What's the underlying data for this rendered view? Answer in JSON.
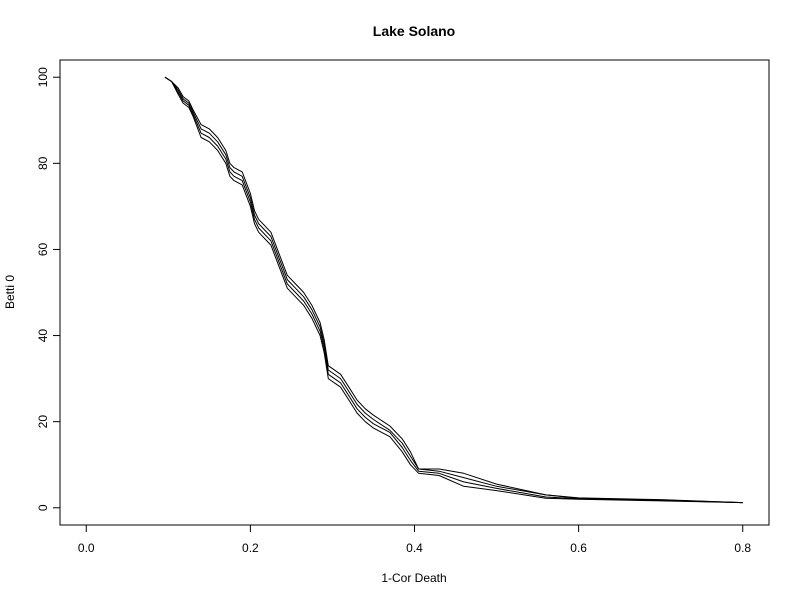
{
  "chart_data": {
    "type": "line",
    "title": "Lake Solano",
    "xlabel": "1-Cor Death",
    "ylabel": "Betti 0",
    "xlim": [
      -0.032,
      0.832
    ],
    "ylim": [
      -4,
      104
    ],
    "xticks": [
      0.0,
      0.2,
      0.4,
      0.6,
      0.8
    ],
    "xtick_labels": [
      "0.0",
      "0.2",
      "0.4",
      "0.6",
      "0.8"
    ],
    "yticks": [
      0,
      20,
      40,
      60,
      80,
      100
    ],
    "ytick_labels": [
      "0",
      "20",
      "40",
      "60",
      "80",
      "100"
    ],
    "grid": false,
    "legend": "none",
    "line_color": "#000000",
    "series": [
      {
        "x": [
          0.096,
          0.104,
          0.112,
          0.118,
          0.125,
          0.13,
          0.14,
          0.15,
          0.16,
          0.17,
          0.175,
          0.18,
          0.19,
          0.2,
          0.205,
          0.21,
          0.225,
          0.235,
          0.245,
          0.255,
          0.265,
          0.275,
          0.285,
          0.29,
          0.295,
          0.31,
          0.32,
          0.33,
          0.34,
          0.35,
          0.37,
          0.385,
          0.395,
          0.405,
          0.43,
          0.46,
          0.5,
          0.56,
          0.6,
          0.7,
          0.8
        ],
        "values": [
          100,
          99,
          96,
          94,
          93,
          91,
          86,
          85,
          83,
          80,
          77,
          76,
          75,
          70,
          66,
          64,
          61,
          56,
          51,
          49,
          47,
          44,
          40,
          36,
          30,
          28,
          25,
          22,
          20,
          18.5,
          16.5,
          13,
          10,
          8,
          7.5,
          5,
          4,
          2.2,
          2,
          1.6,
          1.2
        ]
      },
      {
        "x": [
          0.096,
          0.104,
          0.112,
          0.118,
          0.125,
          0.13,
          0.14,
          0.15,
          0.16,
          0.17,
          0.175,
          0.18,
          0.19,
          0.2,
          0.205,
          0.21,
          0.225,
          0.235,
          0.245,
          0.255,
          0.265,
          0.275,
          0.285,
          0.29,
          0.295,
          0.31,
          0.32,
          0.33,
          0.34,
          0.35,
          0.37,
          0.385,
          0.395,
          0.405,
          0.43,
          0.46,
          0.5,
          0.56,
          0.6,
          0.7,
          0.8
        ],
        "values": [
          100,
          99,
          96.5,
          94.5,
          93.5,
          91.5,
          87,
          86,
          84,
          81,
          78,
          77,
          76,
          71,
          67,
          65,
          62,
          57,
          52,
          50,
          48,
          45,
          41,
          37,
          31,
          29,
          26,
          23,
          21,
          19.5,
          17.5,
          14,
          11,
          8.5,
          8,
          6,
          4.5,
          2.5,
          2.1,
          1.7,
          1.2
        ]
      },
      {
        "x": [
          0.096,
          0.104,
          0.112,
          0.118,
          0.125,
          0.13,
          0.14,
          0.15,
          0.16,
          0.17,
          0.175,
          0.18,
          0.19,
          0.2,
          0.205,
          0.21,
          0.225,
          0.235,
          0.245,
          0.255,
          0.265,
          0.275,
          0.285,
          0.29,
          0.295,
          0.31,
          0.32,
          0.33,
          0.34,
          0.35,
          0.37,
          0.385,
          0.395,
          0.405,
          0.43,
          0.46,
          0.5,
          0.56,
          0.6,
          0.7,
          0.8
        ],
        "values": [
          100,
          99,
          97,
          95,
          94,
          92,
          88,
          87,
          85,
          82,
          79,
          78,
          77,
          72,
          68,
          66,
          63,
          58,
          53,
          51,
          49,
          46,
          42,
          38,
          32,
          30,
          27,
          24,
          22,
          20.5,
          18,
          15,
          12,
          9,
          8.5,
          7,
          5,
          3,
          2.2,
          1.8,
          1.2
        ]
      },
      {
        "x": [
          0.096,
          0.104,
          0.112,
          0.118,
          0.125,
          0.13,
          0.14,
          0.15,
          0.16,
          0.17,
          0.175,
          0.18,
          0.19,
          0.2,
          0.205,
          0.21,
          0.225,
          0.235,
          0.245,
          0.255,
          0.265,
          0.275,
          0.285,
          0.29,
          0.295,
          0.31,
          0.32,
          0.33,
          0.34,
          0.35,
          0.37,
          0.385,
          0.395,
          0.405,
          0.43,
          0.46,
          0.5,
          0.56,
          0.6,
          0.7,
          0.8
        ],
        "values": [
          100,
          99,
          97.5,
          95.5,
          94.5,
          92.5,
          89,
          88,
          86,
          83,
          80,
          79,
          78,
          73,
          69,
          67,
          64,
          59,
          54,
          52,
          50,
          47,
          43,
          39,
          33,
          31,
          28,
          25,
          23,
          21.5,
          19,
          16,
          13,
          9,
          9,
          8,
          5.5,
          3,
          2.3,
          1.9,
          1.2
        ]
      }
    ]
  }
}
